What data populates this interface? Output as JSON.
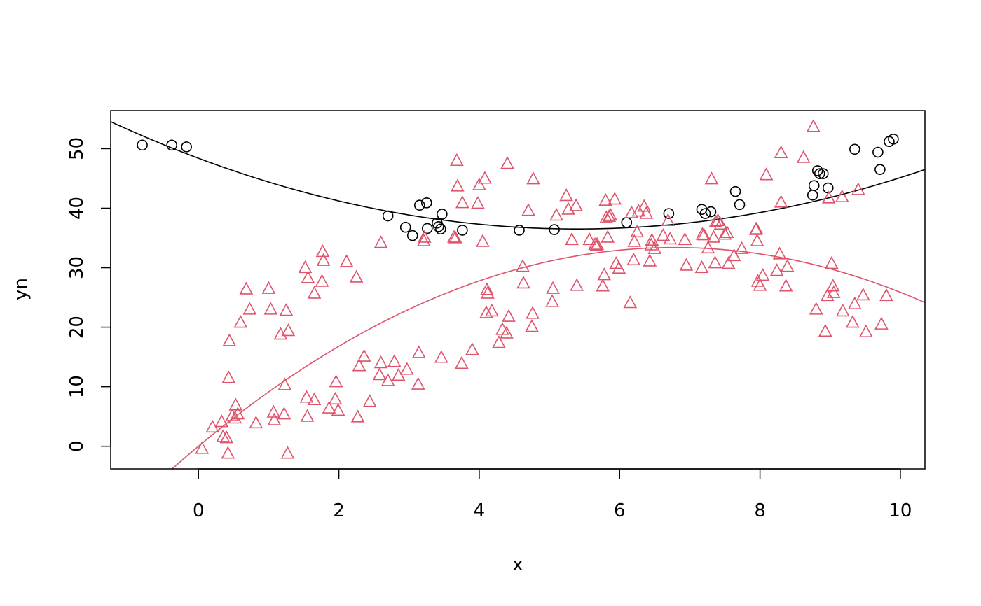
{
  "chart_data": {
    "type": "scatter",
    "title": "",
    "xlabel": "x",
    "ylabel": "yn",
    "xlim": [
      -1.25,
      10.35
    ],
    "ylim": [
      -3.8,
      56.4
    ],
    "xticks": [
      "0",
      "2",
      "4",
      "6",
      "8",
      "10"
    ],
    "yticks": [
      "0",
      "10",
      "20",
      "30",
      "40",
      "50"
    ],
    "grid": false,
    "legend": "none",
    "series": [
      {
        "marker": "circle",
        "color": "#000000",
        "points": [
          [
            -0.8,
            50.6
          ],
          [
            -0.38,
            50.6
          ],
          [
            -0.17,
            50.3
          ],
          [
            2.7,
            38.7
          ],
          [
            2.95,
            36.8
          ],
          [
            3.05,
            35.4
          ],
          [
            3.15,
            40.5
          ],
          [
            3.25,
            40.9
          ],
          [
            3.26,
            36.6
          ],
          [
            3.4,
            37.5
          ],
          [
            3.42,
            36.9
          ],
          [
            3.45,
            36.5
          ],
          [
            3.47,
            39.0
          ],
          [
            3.76,
            36.3
          ],
          [
            4.57,
            36.3
          ],
          [
            5.07,
            36.4
          ],
          [
            6.1,
            37.6
          ],
          [
            6.7,
            39.1
          ],
          [
            7.17,
            39.8
          ],
          [
            7.22,
            39.1
          ],
          [
            7.3,
            39.4
          ],
          [
            7.65,
            42.8
          ],
          [
            7.71,
            40.6
          ],
          [
            8.75,
            42.2
          ],
          [
            8.77,
            43.8
          ],
          [
            8.82,
            46.3
          ],
          [
            8.85,
            45.8
          ],
          [
            8.9,
            45.8
          ],
          [
            8.97,
            43.4
          ],
          [
            9.35,
            49.9
          ],
          [
            9.68,
            49.4
          ],
          [
            9.71,
            46.5
          ],
          [
            9.84,
            51.2
          ],
          [
            9.9,
            51.6
          ]
        ],
        "fit": [
          48.39,
          -4.4016,
          0.40766
        ]
      },
      {
        "marker": "triangle",
        "color": "#df536b",
        "points": [
          [
            0.05,
            -0.5
          ],
          [
            0.2,
            3.1
          ],
          [
            0.33,
            4.0
          ],
          [
            0.35,
            1.5
          ],
          [
            0.4,
            1.3
          ],
          [
            0.42,
            -1.3
          ],
          [
            0.43,
            11.4
          ],
          [
            0.44,
            17.6
          ],
          [
            0.48,
            5.0
          ],
          [
            0.52,
            4.6
          ],
          [
            0.53,
            6.8
          ],
          [
            0.56,
            5.3
          ],
          [
            0.6,
            20.7
          ],
          [
            0.68,
            26.3
          ],
          [
            0.73,
            22.9
          ],
          [
            0.82,
            3.8
          ],
          [
            1.0,
            26.4
          ],
          [
            1.03,
            22.9
          ],
          [
            1.07,
            5.6
          ],
          [
            1.08,
            4.3
          ],
          [
            1.17,
            18.7
          ],
          [
            1.22,
            5.3
          ],
          [
            1.23,
            10.2
          ],
          [
            1.25,
            22.7
          ],
          [
            1.27,
            -1.3
          ],
          [
            1.28,
            19.3
          ],
          [
            1.52,
            29.9
          ],
          [
            1.54,
            8.1
          ],
          [
            1.55,
            4.9
          ],
          [
            1.56,
            28.2
          ],
          [
            1.65,
            7.7
          ],
          [
            1.65,
            25.6
          ],
          [
            1.76,
            27.6
          ],
          [
            1.77,
            32.6
          ],
          [
            1.78,
            31.1
          ],
          [
            1.86,
            6.3
          ],
          [
            1.95,
            7.8
          ],
          [
            1.96,
            10.7
          ],
          [
            1.99,
            5.9
          ],
          [
            2.11,
            30.9
          ],
          [
            2.25,
            28.3
          ],
          [
            2.27,
            4.8
          ],
          [
            2.29,
            13.4
          ],
          [
            2.36,
            15.0
          ],
          [
            2.44,
            7.4
          ],
          [
            2.58,
            11.9
          ],
          [
            2.6,
            34.1
          ],
          [
            2.6,
            13.9
          ],
          [
            2.7,
            10.9
          ],
          [
            2.79,
            14.1
          ],
          [
            2.85,
            11.8
          ],
          [
            2.97,
            12.8
          ],
          [
            3.13,
            10.3
          ],
          [
            3.14,
            15.6
          ],
          [
            3.21,
            34.4
          ],
          [
            3.22,
            35.0
          ],
          [
            3.46,
            14.8
          ],
          [
            3.64,
            35.0
          ],
          [
            3.66,
            34.9
          ],
          [
            3.68,
            47.9
          ],
          [
            3.69,
            43.6
          ],
          [
            3.75,
            13.8
          ],
          [
            3.76,
            40.8
          ],
          [
            3.9,
            16.1
          ],
          [
            3.98,
            40.7
          ],
          [
            4.0,
            43.8
          ],
          [
            4.05,
            34.3
          ],
          [
            4.08,
            44.9
          ],
          [
            4.1,
            22.3
          ],
          [
            4.11,
            26.2
          ],
          [
            4.12,
            25.6
          ],
          [
            4.18,
            22.6
          ],
          [
            4.28,
            17.3
          ],
          [
            4.33,
            19.5
          ],
          [
            4.39,
            18.9
          ],
          [
            4.4,
            47.4
          ],
          [
            4.42,
            21.7
          ],
          [
            4.62,
            30.1
          ],
          [
            4.63,
            27.3
          ],
          [
            4.7,
            39.5
          ],
          [
            4.75,
            20.0
          ],
          [
            4.76,
            22.2
          ],
          [
            4.77,
            44.8
          ],
          [
            5.04,
            24.2
          ],
          [
            5.05,
            26.4
          ],
          [
            5.1,
            38.7
          ],
          [
            5.24,
            42.0
          ],
          [
            5.27,
            39.7
          ],
          [
            5.32,
            34.6
          ],
          [
            5.38,
            40.3
          ],
          [
            5.39,
            26.9
          ],
          [
            5.57,
            34.6
          ],
          [
            5.65,
            33.8
          ],
          [
            5.67,
            33.6
          ],
          [
            5.68,
            33.8
          ],
          [
            5.76,
            26.8
          ],
          [
            5.78,
            28.7
          ],
          [
            5.8,
            41.2
          ],
          [
            5.81,
            38.3
          ],
          [
            5.83,
            35.0
          ],
          [
            5.85,
            38.5
          ],
          [
            5.87,
            38.7
          ],
          [
            5.93,
            41.4
          ],
          [
            5.95,
            30.6
          ],
          [
            5.99,
            29.8
          ],
          [
            6.15,
            24.0
          ],
          [
            6.17,
            39.1
          ],
          [
            6.2,
            31.2
          ],
          [
            6.21,
            34.3
          ],
          [
            6.25,
            35.9
          ],
          [
            6.27,
            39.4
          ],
          [
            6.35,
            40.2
          ],
          [
            6.38,
            39.0
          ],
          [
            6.43,
            31.0
          ],
          [
            6.45,
            33.7
          ],
          [
            6.46,
            34.5
          ],
          [
            6.5,
            33.1
          ],
          [
            6.62,
            35.3
          ],
          [
            6.69,
            37.8
          ],
          [
            6.72,
            34.7
          ],
          [
            6.93,
            34.6
          ],
          [
            6.95,
            30.3
          ],
          [
            7.17,
            29.9
          ],
          [
            7.18,
            35.5
          ],
          [
            7.2,
            35.4
          ],
          [
            7.26,
            33.2
          ],
          [
            7.31,
            44.8
          ],
          [
            7.34,
            35.0
          ],
          [
            7.36,
            30.7
          ],
          [
            7.37,
            37.6
          ],
          [
            7.4,
            37.8
          ],
          [
            7.44,
            37.2
          ],
          [
            7.5,
            35.5
          ],
          [
            7.53,
            35.8
          ],
          [
            7.55,
            30.6
          ],
          [
            7.63,
            31.9
          ],
          [
            7.74,
            33.1
          ],
          [
            7.94,
            36.3
          ],
          [
            7.95,
            36.4
          ],
          [
            7.96,
            34.4
          ],
          [
            7.97,
            27.6
          ],
          [
            8.0,
            26.9
          ],
          [
            8.04,
            28.6
          ],
          [
            8.09,
            45.5
          ],
          [
            8.24,
            29.4
          ],
          [
            8.28,
            32.2
          ],
          [
            8.3,
            49.2
          ],
          [
            8.3,
            40.9
          ],
          [
            8.37,
            26.8
          ],
          [
            8.39,
            30.1
          ],
          [
            8.62,
            48.4
          ],
          [
            8.76,
            53.6
          ],
          [
            8.8,
            22.9
          ],
          [
            8.93,
            19.2
          ],
          [
            8.96,
            25.2
          ],
          [
            8.98,
            41.6
          ],
          [
            9.02,
            30.6
          ],
          [
            9.04,
            26.8
          ],
          [
            9.05,
            25.7
          ],
          [
            9.17,
            41.8
          ],
          [
            9.18,
            22.6
          ],
          [
            9.32,
            20.7
          ],
          [
            9.35,
            23.8
          ],
          [
            9.4,
            43.0
          ],
          [
            9.47,
            25.3
          ],
          [
            9.51,
            19.1
          ],
          [
            9.73,
            20.4
          ],
          [
            9.8,
            25.2
          ]
        ],
        "fit": [
          0.0,
          9.85,
          -0.7263
        ]
      }
    ]
  }
}
